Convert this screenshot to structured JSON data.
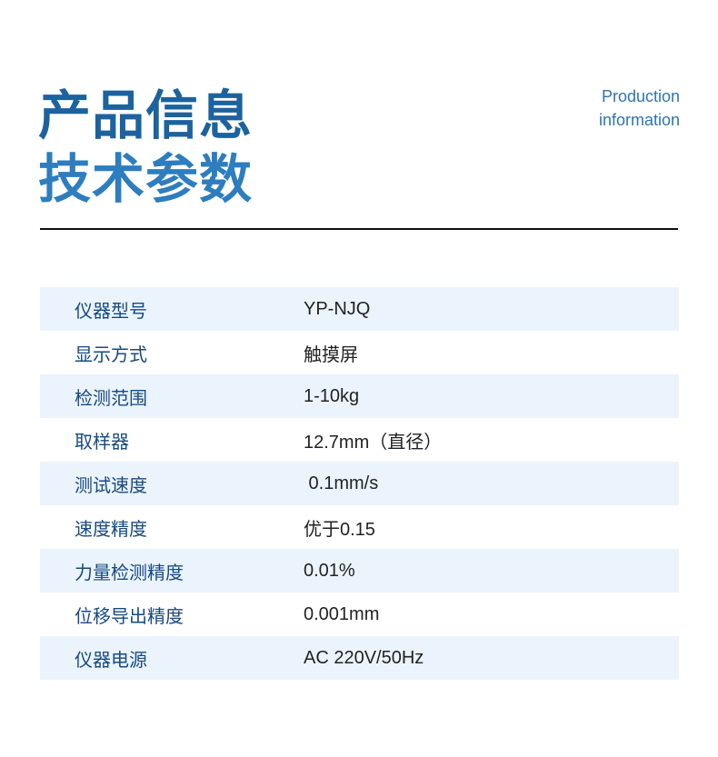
{
  "header": {
    "title_line1": "产品信息",
    "title_line2": "技术参数",
    "en_line1": "Production",
    "en_line2": "information"
  },
  "specs": [
    {
      "label": "仪器型号",
      "value": "YP-NJQ"
    },
    {
      "label": "显示方式",
      "value": "触摸屏"
    },
    {
      "label": "检测范围",
      "value": "1-10kg"
    },
    {
      "label": "取样器",
      "value": "12.7mm（直径）"
    },
    {
      "label": "测试速度",
      "value": " 0.1mm/s"
    },
    {
      "label": "速度精度",
      "value": "优于0.15"
    },
    {
      "label": "力量检测精度",
      "value": "0.01%"
    },
    {
      "label": "位移导出精度",
      "value": "0.001mm"
    },
    {
      "label": "仪器电源",
      "value": "AC 220V/50Hz"
    }
  ]
}
